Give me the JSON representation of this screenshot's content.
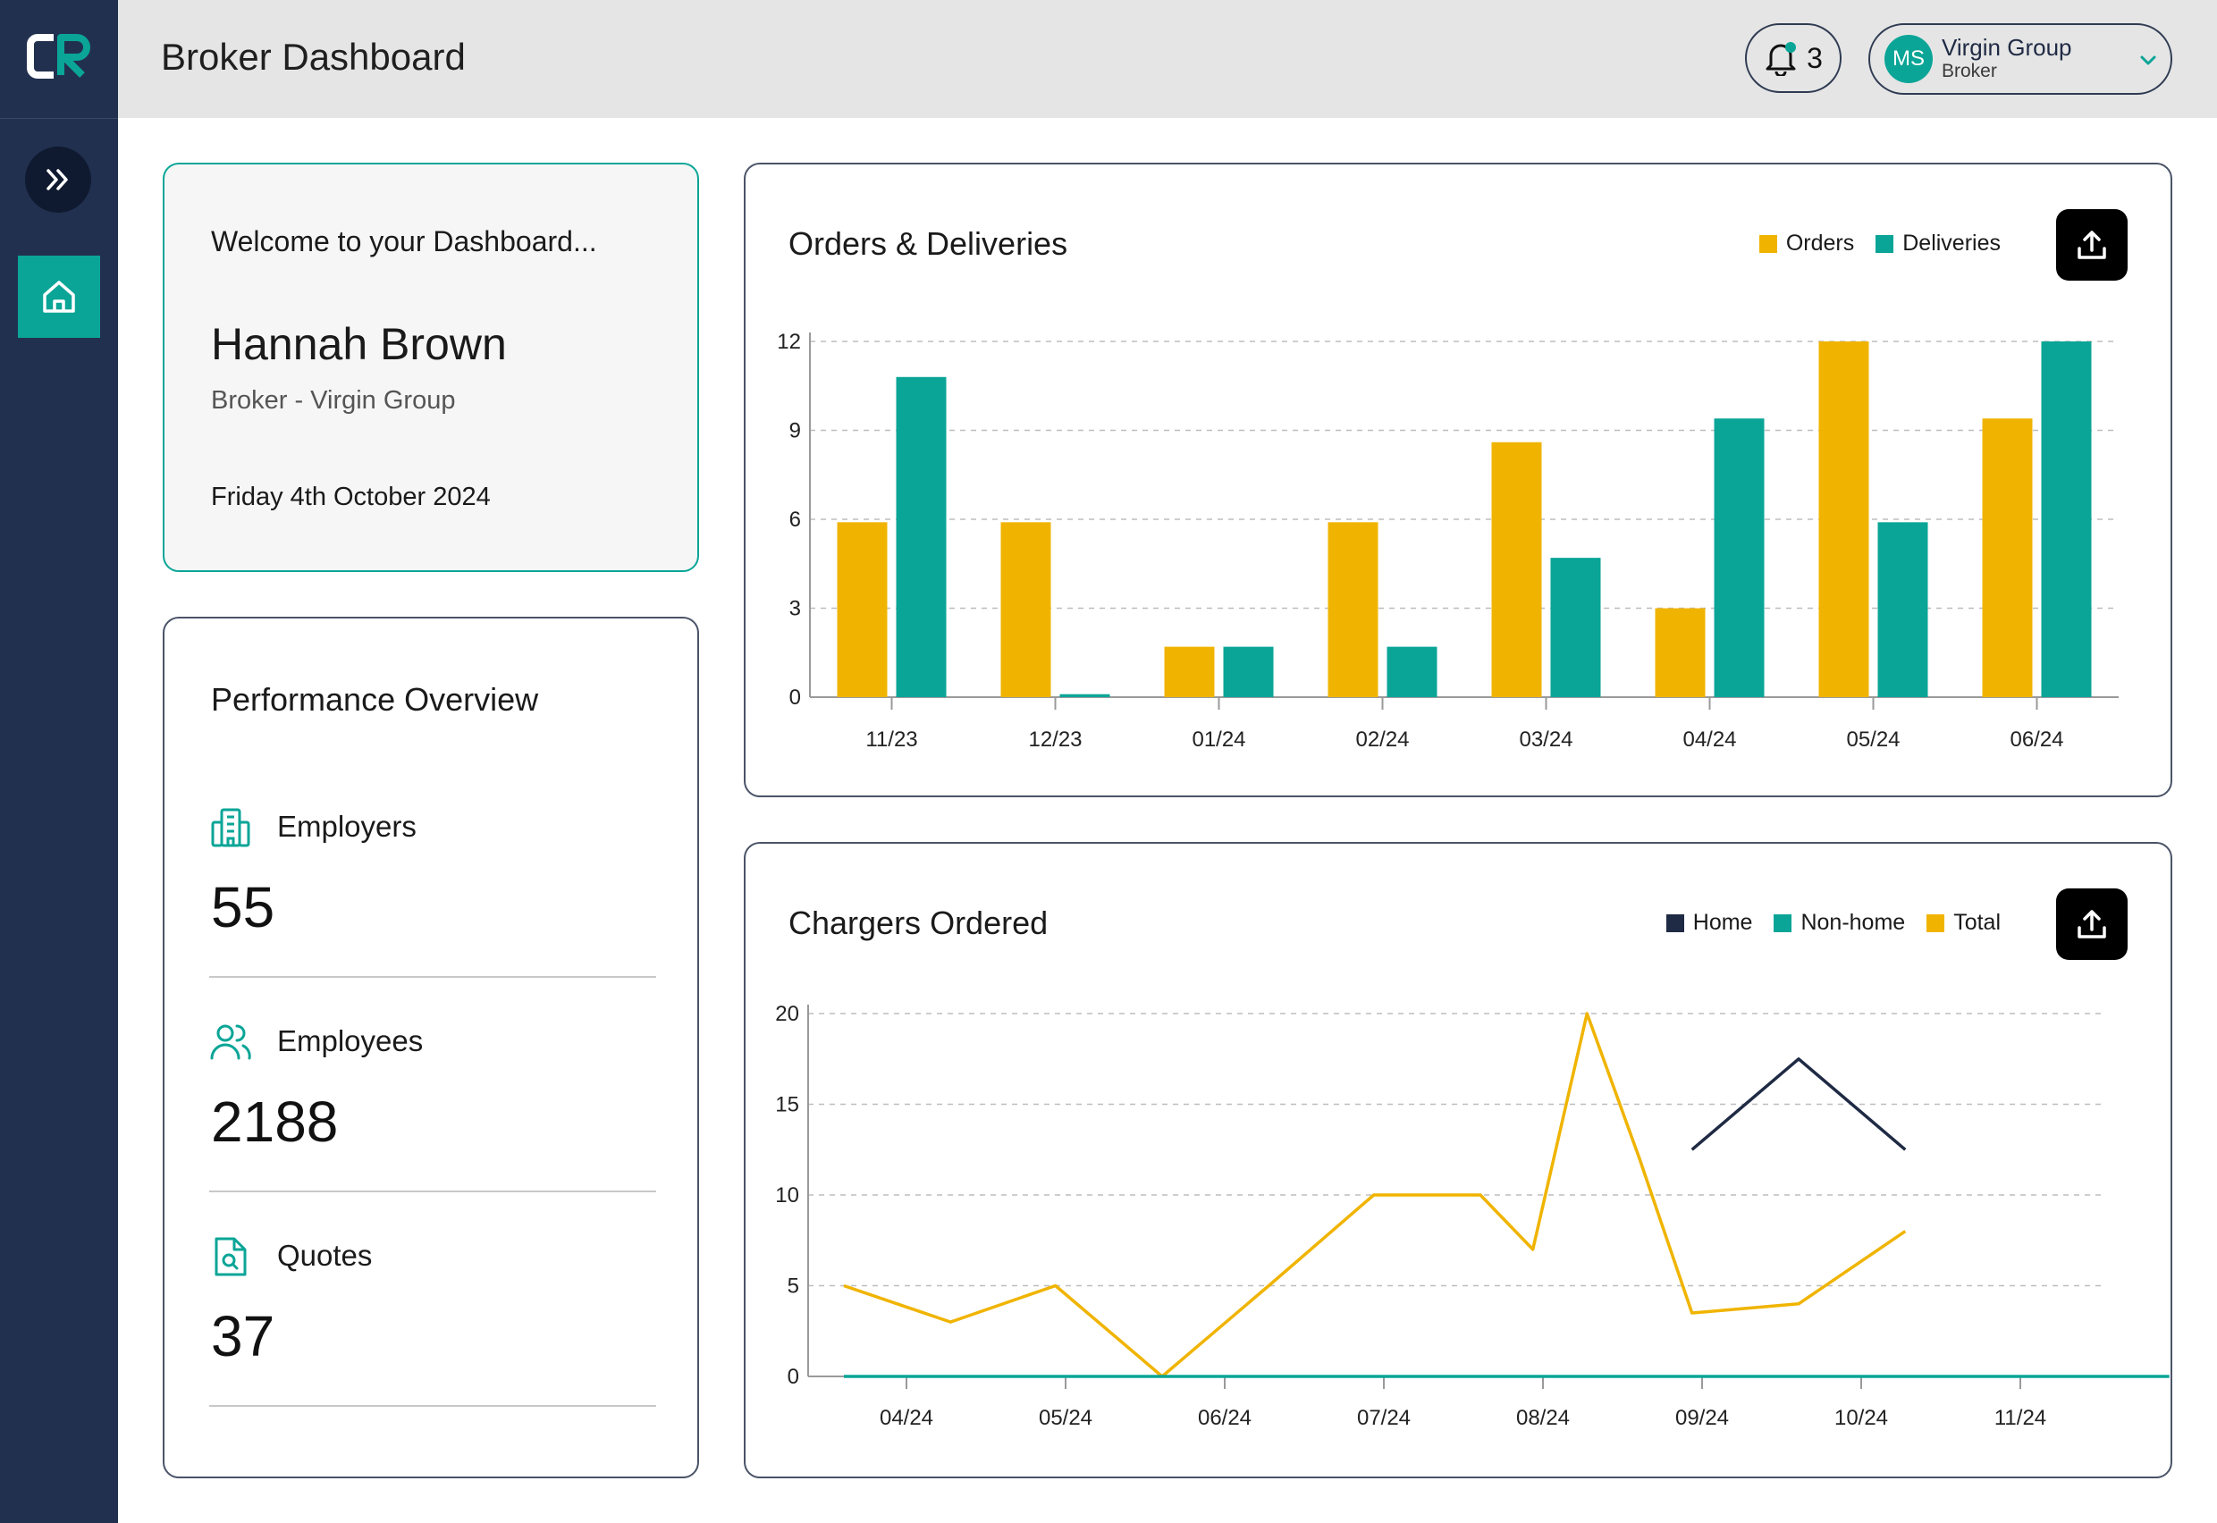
{
  "app": {
    "title": "Broker Dashboard"
  },
  "header": {
    "notification_count": "3",
    "account": {
      "initials": "MS",
      "name": "Virgin Group",
      "role": "Broker"
    }
  },
  "colors": {
    "sidebar": "#22304f",
    "accent": "#0aa597",
    "orders": "#f0b400",
    "deliveries": "#0aa597",
    "home": "#1f2a44",
    "nonhome": "#0aa597",
    "total": "#f0b400"
  },
  "welcome": {
    "greeting": "Welcome to your Dashboard...",
    "name": "Hannah Brown",
    "subtitle": "Broker - Virgin Group",
    "date": "Friday 4th October 2024"
  },
  "performance": {
    "title": "Performance Overview",
    "metrics": [
      {
        "label": "Employers",
        "value": "55",
        "icon": "building-icon"
      },
      {
        "label": "Employees",
        "value": "2188",
        "icon": "users-icon"
      },
      {
        "label": "Quotes",
        "value": "37",
        "icon": "document-search-icon"
      }
    ]
  },
  "orders_chart": {
    "title": "Orders & Deliveries",
    "legend": [
      "Orders",
      "Deliveries"
    ]
  },
  "chargers_chart": {
    "title": "Chargers Ordered",
    "legend": [
      "Home",
      "Non-home",
      "Total"
    ]
  },
  "chart_data": [
    {
      "type": "bar",
      "title": "Orders & Deliveries",
      "categories": [
        "11/23",
        "12/23",
        "01/24",
        "02/24",
        "03/24",
        "04/24",
        "05/24",
        "06/24"
      ],
      "series": [
        {
          "name": "Orders",
          "values": [
            5.9,
            5.9,
            1.7,
            5.9,
            8.6,
            3,
            12,
            9.4
          ]
        },
        {
          "name": "Deliveries",
          "values": [
            10.8,
            0.1,
            1.7,
            1.7,
            4.7,
            9.4,
            5.9,
            12
          ]
        }
      ],
      "ylim": [
        0,
        12
      ],
      "yticks": [
        0,
        3,
        6,
        9,
        12
      ],
      "grid": true,
      "legend_position": "top-right"
    },
    {
      "type": "line",
      "title": "Chargers Ordered",
      "x": [
        0,
        0.67,
        1.33,
        2,
        2.67,
        3.33,
        3.67,
        4,
        4.33,
        4.67,
        5,
        5.33,
        6,
        6.67,
        7,
        7.67,
        8.33
      ],
      "xticks": [
        "04/24",
        "05/24",
        "06/24",
        "07/24",
        "08/24",
        "09/24",
        "10/24",
        "11/24"
      ],
      "series": [
        {
          "name": "Home",
          "values": [
            null,
            null,
            null,
            null,
            null,
            null,
            null,
            null,
            null,
            null,
            null,
            12.5,
            17.5,
            12.5,
            null,
            null,
            null
          ]
        },
        {
          "name": "Non-home",
          "values": [
            0,
            0,
            0,
            0,
            0,
            0,
            0,
            0,
            0,
            0,
            0,
            0,
            0,
            0,
            0,
            0,
            0
          ]
        },
        {
          "name": "Total",
          "values": [
            5,
            3,
            5,
            0,
            5,
            10,
            10,
            10,
            7,
            20,
            12,
            3.5,
            4,
            8,
            null,
            null,
            null
          ]
        }
      ],
      "ylim": [
        0,
        20
      ],
      "yticks": [
        0,
        5,
        10,
        15,
        20
      ],
      "grid": true,
      "legend_position": "top-right"
    }
  ]
}
